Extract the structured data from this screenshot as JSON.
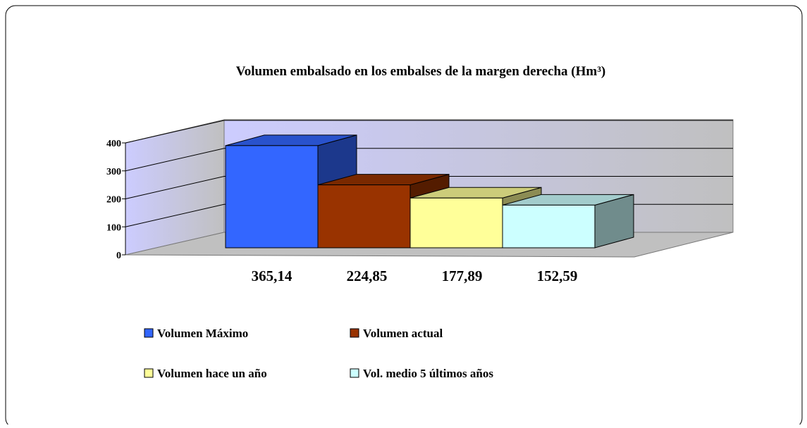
{
  "chart_data": {
    "type": "bar3d",
    "title": "Volumen embalsado en los embalses de la margen derecha (Hm³)",
    "ylim": [
      0,
      400
    ],
    "yticks": [
      0,
      100,
      200,
      300,
      400
    ],
    "grid": true,
    "series": [
      {
        "name": "Volumen Máximo",
        "color": "#3366ff",
        "values": [
          365.14
        ],
        "value_labels": [
          "365,14"
        ]
      },
      {
        "name": "Volumen actual",
        "color": "#993300",
        "values": [
          224.85
        ],
        "value_labels": [
          "224,85"
        ]
      },
      {
        "name": "Volumen hace un año",
        "color": "#ffff99",
        "values": [
          177.89
        ],
        "value_labels": [
          "177,89"
        ]
      },
      {
        "name": "Vol. medio 5 últimos años",
        "color": "#ccffff",
        "values": [
          152.59
        ],
        "value_labels": [
          "152,59"
        ]
      }
    ]
  }
}
